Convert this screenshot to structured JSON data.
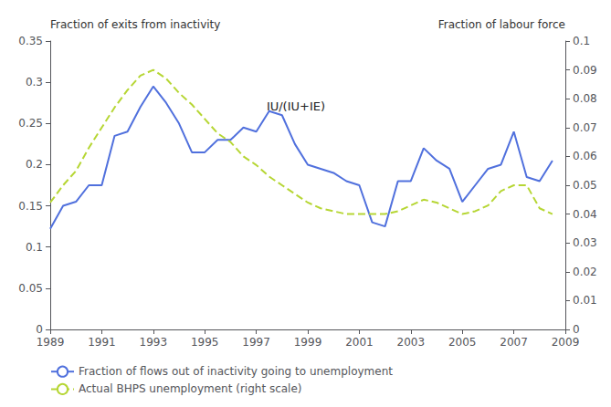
{
  "chart_data": {
    "type": "line",
    "ylabel": "Fraction of exits from inactivity",
    "y2label": "Fraction of labour force",
    "x": [
      1989.0,
      1989.5,
      1990.0,
      1990.5,
      1991.0,
      1991.5,
      1992.0,
      1992.5,
      1993.0,
      1993.5,
      1994.0,
      1994.5,
      1995.0,
      1995.5,
      1996.0,
      1996.5,
      1997.0,
      1997.5,
      1998.0,
      1998.5,
      1999.0,
      1999.5,
      2000.0,
      2000.5,
      2001.0,
      2001.5,
      2002.0,
      2002.5,
      2003.0,
      2003.5,
      2004.0,
      2004.5,
      2005.0,
      2005.5,
      2006.0,
      2006.5,
      2007.0,
      2007.5,
      2008.0,
      2008.5
    ],
    "series": [
      {
        "name": "Fraction of flows out of inactivity going to unemployment",
        "line_style": "solid",
        "values": [
          0.122,
          0.15,
          0.155,
          0.175,
          0.175,
          0.235,
          0.24,
          0.27,
          0.295,
          0.275,
          0.25,
          0.215,
          0.215,
          0.23,
          0.23,
          0.245,
          0.24,
          0.265,
          0.26,
          0.225,
          0.2,
          0.195,
          0.19,
          0.18,
          0.175,
          0.13,
          0.125,
          0.18,
          0.18,
          0.22,
          0.205,
          0.195,
          0.155,
          0.175,
          0.195,
          0.2,
          0.24,
          0.185,
          0.18,
          0.205
        ]
      },
      {
        "name": "Actual BHPS unemployment (right scale)",
        "axis": "y2",
        "line_style": "dashed",
        "values": [
          0.044,
          0.05,
          0.055,
          0.063,
          0.07,
          0.077,
          0.083,
          0.088,
          0.09,
          0.087,
          0.082,
          0.078,
          0.073,
          0.068,
          0.065,
          0.06,
          0.057,
          0.053,
          0.05,
          0.047,
          0.044,
          0.042,
          0.041,
          0.04,
          0.04,
          0.04,
          0.04,
          0.041,
          0.043,
          0.045,
          0.044,
          0.042,
          0.04,
          0.041,
          0.043,
          0.048,
          0.05,
          0.05,
          0.042,
          0.04
        ]
      }
    ],
    "xlim": [
      1989,
      2009
    ],
    "xticks": [
      1989,
      1991,
      1993,
      1995,
      1997,
      1999,
      2001,
      2003,
      2005,
      2007,
      2009
    ],
    "ylim": [
      0,
      0.35
    ],
    "yticks": [
      0,
      0.05,
      0.1,
      0.15,
      0.2,
      0.25,
      0.3,
      0.35
    ],
    "y2lim": [
      0,
      0.1
    ],
    "y2ticks": [
      0,
      0.01,
      0.02,
      0.03,
      0.04,
      0.05,
      0.06,
      0.07,
      0.08,
      0.09,
      0.1
    ],
    "annotations": [
      {
        "text": "IU/(IU+IE)",
        "x": 1997.4,
        "y": 0.262
      }
    ],
    "legend": "lower left",
    "grid": false
  }
}
